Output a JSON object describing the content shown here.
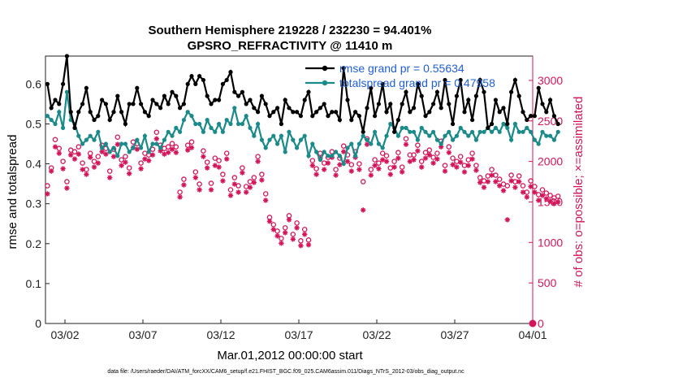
{
  "chart_data": {
    "type": "line",
    "title": "Southern Hemisphere 219228 / 232230 = 94.401%",
    "subtitle": "GPSRO_REFRACTIVITY @ 11410 m",
    "xlabel": "Mar.01,2012 00:00:00 start",
    "ylabel": "rmse and totalspread",
    "y2label": "# of obs: o=possible; ×=assimilated",
    "footnote": "data file: /Users/raeder/DAI/ATM_forcXX/CAM6_setup/f.e21.FHIST_BGC.f09_025.CAM6assim.011/Diags_NTrS_2012-03/obs_diag_output.nc",
    "x_tick_labels": [
      "03/02",
      "03/07",
      "03/12",
      "03/17",
      "03/22",
      "03/27",
      "04/01"
    ],
    "x_tick_days": [
      2,
      7,
      12,
      17,
      22,
      27,
      32
    ],
    "xlim_days": [
      0.75,
      32
    ],
    "ylim": [
      0,
      0.67
    ],
    "y_ticks": [
      "0",
      "0.1",
      "0.2",
      "0.3",
      "0.4",
      "0.5",
      "0.6"
    ],
    "y2lim": [
      0,
      3300
    ],
    "y2_ticks": [
      "0",
      "500",
      "1000",
      "1500",
      "2000",
      "2500",
      "3000"
    ],
    "grid": false,
    "legend_position": "top-right",
    "colors": {
      "rmse": "#000000",
      "spread": "#1a8a8a",
      "obs": "#d4145a",
      "legend_text": "#1f5fd6"
    },
    "start_day": 0.875,
    "interval_days": 0.25,
    "series": [
      {
        "name": "rmse grand pr = 0.55634",
        "axis": "left",
        "values": [
          0.6,
          0.54,
          0.56,
          0.55,
          0.6,
          0.67,
          0.53,
          0.49,
          0.53,
          0.55,
          0.59,
          0.53,
          0.51,
          0.52,
          0.56,
          0.55,
          0.51,
          0.53,
          0.57,
          0.53,
          0.5,
          0.55,
          0.55,
          0.59,
          0.55,
          0.53,
          0.52,
          0.56,
          0.55,
          0.54,
          0.57,
          0.55,
          0.58,
          0.57,
          0.54,
          0.55,
          0.6,
          0.62,
          0.6,
          0.62,
          0.61,
          0.57,
          0.55,
          0.56,
          0.56,
          0.6,
          0.61,
          0.63,
          0.58,
          0.57,
          0.58,
          0.55,
          0.56,
          0.54,
          0.53,
          0.57,
          0.55,
          0.52,
          0.53,
          0.54,
          0.5,
          0.56,
          0.54,
          0.53,
          0.53,
          0.52,
          0.56,
          0.58,
          0.52,
          0.53,
          0.54,
          0.55,
          0.52,
          0.53,
          0.53,
          0.51,
          0.64,
          0.56,
          0.51,
          0.53,
          0.52,
          0.48,
          0.54,
          0.59,
          0.52,
          0.55,
          0.6,
          0.53,
          0.55,
          0.48,
          0.51,
          0.55,
          0.58,
          0.53,
          0.54,
          0.6,
          0.57,
          0.52,
          0.53,
          0.55,
          0.58,
          0.54,
          0.61,
          0.55,
          0.5,
          0.57,
          0.61,
          0.53,
          0.56,
          0.51,
          0.57,
          0.61,
          0.58,
          0.49,
          0.5,
          0.56,
          0.53,
          0.54,
          0.5,
          0.58,
          0.61,
          0.57,
          0.53,
          0.51,
          0.52,
          0.52,
          0.59,
          0.55,
          0.53,
          0.56,
          0.52,
          0.5
        ]
      },
      {
        "name": "totalspread grand pr = 0.47958",
        "axis": "left",
        "values": [
          0.52,
          0.51,
          0.5,
          0.53,
          0.49,
          0.58,
          0.51,
          0.5,
          0.47,
          0.45,
          0.46,
          0.47,
          0.46,
          0.48,
          0.44,
          0.45,
          0.43,
          0.44,
          0.42,
          0.45,
          0.45,
          0.43,
          0.44,
          0.46,
          0.44,
          0.47,
          0.43,
          0.45,
          0.45,
          0.44,
          0.46,
          0.48,
          0.47,
          0.49,
          0.48,
          0.51,
          0.53,
          0.52,
          0.5,
          0.5,
          0.48,
          0.51,
          0.49,
          0.48,
          0.5,
          0.48,
          0.51,
          0.5,
          0.54,
          0.5,
          0.5,
          0.52,
          0.49,
          0.47,
          0.5,
          0.46,
          0.44,
          0.46,
          0.47,
          0.45,
          0.47,
          0.43,
          0.48,
          0.46,
          0.44,
          0.46,
          0.47,
          0.42,
          0.45,
          0.43,
          0.41,
          0.43,
          0.42,
          0.42,
          0.43,
          0.42,
          0.4,
          0.44,
          0.45,
          0.42,
          0.45,
          0.47,
          0.46,
          0.45,
          0.48,
          0.45,
          0.44,
          0.47,
          0.5,
          0.49,
          0.47,
          0.49,
          0.49,
          0.48,
          0.48,
          0.46,
          0.49,
          0.48,
          0.47,
          0.48,
          0.46,
          0.45,
          0.47,
          0.48,
          0.46,
          0.47,
          0.49,
          0.48,
          0.47,
          0.48,
          0.46,
          0.48,
          0.48,
          0.49,
          0.48,
          0.49,
          0.48,
          0.5,
          0.49,
          0.46,
          0.5,
          0.48,
          0.48,
          0.49,
          0.48,
          0.46,
          0.45,
          0.48,
          0.47,
          0.47,
          0.46,
          0.48
        ]
      },
      {
        "name": "possible",
        "axis": "right",
        "marker": "circle",
        "values": [
          1700,
          1920,
          2270,
          2160,
          2000,
          1750,
          2140,
          2120,
          2180,
          1980,
          1900,
          2100,
          2000,
          2060,
          2200,
          2160,
          1880,
          2150,
          2300,
          2020,
          2060,
          1920,
          2240,
          2220,
          1980,
          2100,
          2080,
          2150,
          2360,
          2200,
          2160,
          2180,
          2220,
          2180,
          1620,
          1780,
          2200,
          2240,
          1870,
          1720,
          2130,
          1990,
          1730,
          2040,
          2010,
          1840,
          2100,
          1650,
          1800,
          1700,
          1920,
          1690,
          1750,
          1800,
          2060,
          1840,
          1600,
          1310,
          1220,
          1140,
          1050,
          1180,
          1330,
          1100,
          1240,
          1020,
          1160,
          1030,
          2010,
          1910,
          2100,
          1980,
          2050,
          2120,
          1900,
          2040,
          2190,
          2080,
          1960,
          2120,
          1970,
          1750,
          2280,
          1900,
          2020,
          1980,
          2100,
          2070,
          1920,
          2000,
          2110,
          1930,
          2280,
          2080,
          2080,
          2200,
          2000,
          2110,
          2140,
          2050,
          2100,
          2250,
          1950,
          2180,
          2040,
          2000,
          2060,
          1950,
          2020,
          2100,
          1950,
          1800,
          1760,
          1820,
          1900,
          1830,
          1780,
          1720,
          1700,
          1830,
          1750,
          1820,
          1700,
          1620,
          1760,
          1690,
          1590,
          1650,
          1610,
          1580,
          1550,
          1570
        ]
      },
      {
        "name": "assimilated",
        "axis": "right",
        "marker": "asterisk",
        "values": [
          1600,
          1880,
          2180,
          2100,
          1910,
          1670,
          2080,
          2030,
          2090,
          1900,
          1840,
          2050,
          1930,
          1980,
          2120,
          2090,
          1800,
          2060,
          2210,
          1950,
          1990,
          1850,
          2170,
          2150,
          1910,
          2030,
          2010,
          2080,
          2280,
          2130,
          2090,
          2110,
          2150,
          2110,
          1560,
          1710,
          2140,
          2170,
          1800,
          1650,
          2060,
          1920,
          1650,
          1950,
          1930,
          1760,
          2030,
          1580,
          1720,
          1620,
          1860,
          1620,
          1680,
          1740,
          2000,
          1770,
          1520,
          1260,
          1160,
          1080,
          990,
          1120,
          1280,
          1040,
          1180,
          960,
          1100,
          970,
          1950,
          1840,
          2040,
          1900,
          1980,
          2050,
          1830,
          1960,
          2120,
          2000,
          1880,
          2050,
          1900,
          1400,
          2210,
          1830,
          1950,
          1910,
          2020,
          2000,
          1840,
          1930,
          2040,
          1870,
          2210,
          2000,
          2020,
          2130,
          1930,
          2040,
          2080,
          1980,
          2030,
          2180,
          1880,
          2110,
          1960,
          1930,
          1990,
          1870,
          1950,
          2030,
          1890,
          1740,
          1680,
          1750,
          1830,
          1750,
          1700,
          1640,
          1280,
          1760,
          1680,
          1750,
          1620,
          1560,
          1690,
          1620,
          1520,
          1580,
          1540,
          1510,
          1480,
          1500
        ]
      }
    ]
  }
}
